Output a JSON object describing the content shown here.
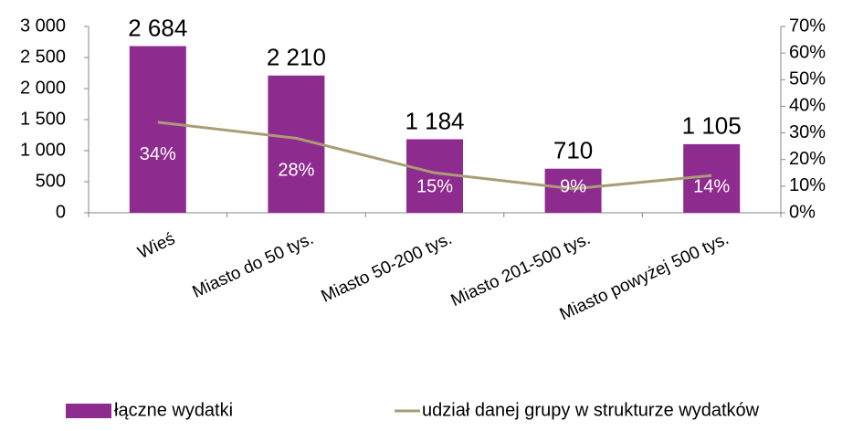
{
  "chart_data": {
    "type": "bar",
    "categories": [
      "Wieś",
      "Miasto do 50 tys.",
      "Miasto 50-200 tys.",
      "Miasto 201-500 tys.",
      "Miasto powyżej 500 tys."
    ],
    "series": [
      {
        "name": "łączne wydatki",
        "type": "bar",
        "color": "#8e2b8f",
        "values": [
          2684,
          2210,
          1184,
          710,
          1105
        ],
        "value_labels": [
          "2 684",
          "2 210",
          "1 184",
          "710",
          "1 105"
        ]
      },
      {
        "name": "udział danej grupy w strukturze wydatków",
        "type": "line",
        "axis": "y2",
        "color": "#a99d76",
        "values": [
          34,
          28,
          15,
          9,
          14
        ],
        "value_labels": [
          "34%",
          "28%",
          "15%",
          "9%",
          "14%"
        ]
      }
    ],
    "ylim": [
      0,
      3000
    ],
    "yticks": [
      0,
      500,
      {
        "value": 1000,
        "label": "1 000"
      },
      {
        "value": 1500,
        "label": "1 500"
      },
      {
        "value": 2000,
        "label": "2 000"
      },
      {
        "value": 2500,
        "label": "2 500"
      },
      {
        "value": 3000,
        "label": "3 000"
      }
    ],
    "y2lim": [
      0,
      70
    ],
    "y2ticks": [
      {
        "value": 0,
        "label": "0%"
      },
      {
        "value": 10,
        "label": "10%"
      },
      {
        "value": 20,
        "label": "20%"
      },
      {
        "value": 30,
        "label": "30%"
      },
      {
        "value": 40,
        "label": "40%"
      },
      {
        "value": 50,
        "label": "50%"
      },
      {
        "value": 60,
        "label": "60%"
      },
      {
        "value": 70,
        "label": "70%"
      }
    ],
    "legend": "bottom"
  }
}
